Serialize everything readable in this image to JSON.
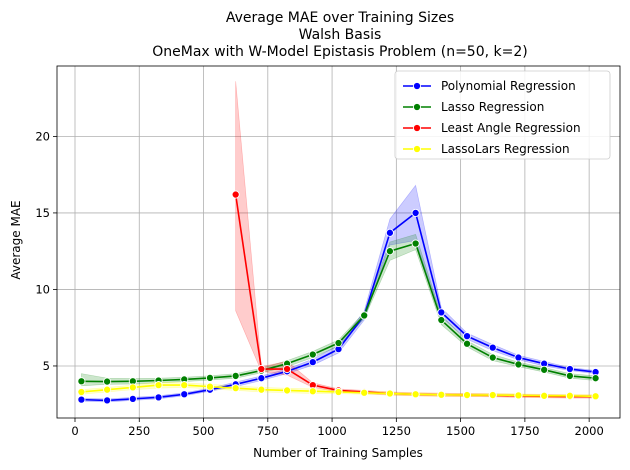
{
  "chart_data": {
    "type": "line",
    "title_lines": [
      "Average MAE over Training Sizes",
      "Walsh Basis",
      "OneMax with W-Model Epistasis Problem (n=50, k=2)"
    ],
    "xlabel": "Number of Training Samples",
    "ylabel": "Average MAE",
    "xlim": [
      -70,
      2120
    ],
    "ylim": [
      1.6,
      24.6
    ],
    "xticks": [
      0,
      250,
      500,
      750,
      1000,
      1250,
      1500,
      1750,
      2000
    ],
    "yticks": [
      5,
      10,
      15,
      20
    ],
    "grid": true,
    "legend_position": "top-right",
    "series": [
      {
        "name": "Polynomial Regression",
        "color": "#0000ff",
        "x": [
          25,
          125,
          225,
          325,
          425,
          525,
          625,
          725,
          825,
          925,
          1025,
          1125,
          1225,
          1325,
          1425,
          1525,
          1625,
          1725,
          1825,
          1925,
          2025
        ],
        "values": [
          2.8,
          2.75,
          2.85,
          2.95,
          3.15,
          3.45,
          3.8,
          4.2,
          4.65,
          5.25,
          6.1,
          8.3,
          13.7,
          15.0,
          8.5,
          6.95,
          6.2,
          5.55,
          5.15,
          4.8,
          4.6
        ],
        "lower": [
          2.7,
          2.65,
          2.75,
          2.85,
          3.05,
          3.35,
          3.65,
          4.05,
          4.5,
          5.05,
          5.85,
          8.0,
          12.9,
          13.2,
          8.2,
          6.75,
          6.0,
          5.4,
          5.0,
          4.7,
          4.5
        ],
        "upper": [
          2.9,
          2.85,
          2.95,
          3.05,
          3.25,
          3.55,
          3.95,
          4.35,
          4.8,
          5.45,
          6.35,
          8.6,
          14.6,
          16.8,
          8.8,
          7.15,
          6.4,
          5.7,
          5.3,
          4.9,
          4.7
        ]
      },
      {
        "name": "Lasso Regression",
        "color": "#008000",
        "x": [
          25,
          125,
          225,
          325,
          425,
          525,
          625,
          725,
          825,
          925,
          1025,
          1125,
          1225,
          1325,
          1425,
          1525,
          1625,
          1725,
          1825,
          1925,
          2025
        ],
        "values": [
          4.0,
          3.98,
          4.0,
          4.05,
          4.12,
          4.22,
          4.35,
          4.7,
          5.15,
          5.75,
          6.5,
          8.3,
          12.5,
          13.0,
          8.0,
          6.45,
          5.55,
          5.1,
          4.75,
          4.35,
          4.2
        ],
        "lower": [
          3.7,
          3.8,
          3.82,
          3.9,
          3.98,
          4.08,
          4.2,
          4.55,
          4.95,
          5.55,
          6.3,
          8.1,
          11.9,
          12.6,
          7.7,
          6.25,
          5.35,
          4.95,
          4.6,
          4.2,
          4.05
        ],
        "upper": [
          4.5,
          4.2,
          4.18,
          4.2,
          4.26,
          4.36,
          4.5,
          4.85,
          5.35,
          5.95,
          6.7,
          8.5,
          13.1,
          13.6,
          8.3,
          6.65,
          5.75,
          5.25,
          4.9,
          4.5,
          4.35
        ]
      },
      {
        "name": "Least Angle Regression",
        "color": "#ff0000",
        "x": [
          625,
          725,
          825,
          925,
          1025,
          1125,
          1225,
          1325,
          1425,
          1525,
          1625,
          1725,
          1825,
          1925,
          2025
        ],
        "values": [
          16.2,
          4.8,
          4.8,
          3.75,
          3.4,
          3.3,
          3.2,
          3.15,
          3.12,
          3.1,
          3.08,
          3.05,
          3.02,
          3.0,
          3.0
        ],
        "lower": [
          8.6,
          4.65,
          4.4,
          3.6,
          3.3,
          3.2,
          3.1,
          3.05,
          3.02,
          3.0,
          2.98,
          2.95,
          2.92,
          2.9,
          2.9
        ],
        "upper": [
          23.6,
          4.95,
          5.3,
          3.9,
          3.5,
          3.4,
          3.3,
          3.25,
          3.22,
          3.2,
          3.18,
          3.15,
          3.12,
          3.1,
          3.1
        ]
      },
      {
        "name": "LassoLars Regression",
        "color": "#ffff00",
        "x": [
          25,
          125,
          225,
          325,
          425,
          525,
          625,
          725,
          825,
          925,
          1025,
          1125,
          1225,
          1325,
          1425,
          1525,
          1625,
          1725,
          1825,
          1925,
          2025
        ],
        "values": [
          3.3,
          3.45,
          3.6,
          3.75,
          3.75,
          3.65,
          3.55,
          3.45,
          3.4,
          3.35,
          3.3,
          3.25,
          3.2,
          3.15,
          3.12,
          3.1,
          3.1,
          3.08,
          3.05,
          3.05,
          3.02
        ],
        "lower": [
          3.15,
          3.3,
          3.45,
          3.55,
          3.6,
          3.5,
          3.4,
          3.3,
          3.25,
          3.2,
          3.2,
          3.15,
          3.1,
          3.05,
          3.02,
          3.0,
          3.0,
          2.98,
          2.95,
          2.95,
          2.92
        ],
        "upper": [
          3.45,
          3.6,
          3.75,
          3.95,
          3.9,
          3.8,
          3.7,
          3.6,
          3.55,
          3.5,
          3.4,
          3.35,
          3.3,
          3.25,
          3.22,
          3.2,
          3.2,
          3.18,
          3.15,
          3.15,
          3.12
        ]
      }
    ]
  }
}
